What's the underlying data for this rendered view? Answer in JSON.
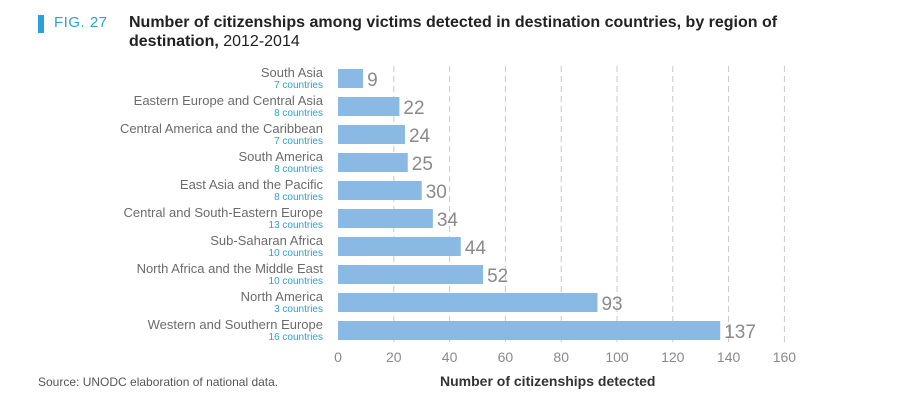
{
  "figure": {
    "label": "FIG. 27",
    "title": "Number of citizenships among victims detected in destination countries, by region of destination,",
    "years": "2012-2014",
    "source": "Source: UNODC elaboration of national data."
  },
  "chart_data": {
    "type": "bar",
    "orientation": "horizontal",
    "title": "Number of citizenships among victims detected in destination countries, by region of destination, 2012-2014",
    "xlabel": "Number of citizenships detected",
    "ylabel": "",
    "xlim": [
      0,
      160
    ],
    "xticks": [
      0,
      20,
      40,
      60,
      80,
      100,
      120,
      140,
      160
    ],
    "grid": "vertical dashed",
    "bar_color": "#8ab9e3",
    "categories": [
      "South Asia",
      "Eastern Europe and Central Asia",
      "Central America and the Caribbean",
      "South America",
      "East Asia and the Pacific",
      "Central and South-Eastern Europe",
      "Sub-Saharan Africa",
      "North Africa and the Middle East",
      "North America",
      "Western and Southern Europe"
    ],
    "subtitles": [
      "7 countries",
      "8 countries",
      "7 countries",
      "8 countries",
      "8 countries",
      "13 countries",
      "10 countries",
      "10 countries",
      "3 countries",
      "16 countries"
    ],
    "values": [
      9,
      22,
      24,
      25,
      30,
      34,
      44,
      52,
      93,
      137
    ]
  }
}
